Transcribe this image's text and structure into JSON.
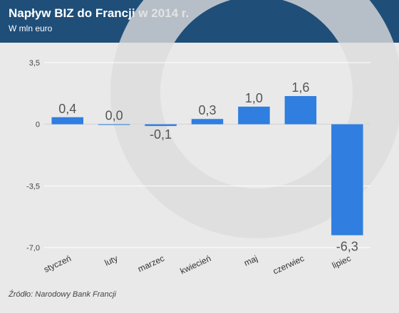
{
  "header": {
    "title": "Napływ BIZ do Francji w 2014 r.",
    "subtitle": "W mln euro"
  },
  "source": "Źródło: Narodowy Bank Francji",
  "colors": {
    "header_bg": "#1f4e79",
    "bar": "#2f7ee0",
    "background": "#e9e9e9",
    "watermark": "#dcdcdc"
  },
  "chart_data": {
    "type": "bar",
    "categories": [
      "styczeń",
      "luty",
      "marzec",
      "kwiecień",
      "maj",
      "czerwiec",
      "lipiec"
    ],
    "values": [
      0.4,
      0.0,
      -0.1,
      0.3,
      1.0,
      1.6,
      -6.3
    ],
    "value_labels": [
      "0,4",
      "0,0",
      "-0,1",
      "0,3",
      "1,0",
      "1,6",
      "-6,3"
    ],
    "yticks": [
      3.5,
      0,
      -3.5,
      -7.0
    ],
    "ytick_labels": [
      "3,5",
      "0",
      "-3,5",
      "-7,0"
    ],
    "ylim": [
      -7.0,
      3.5
    ],
    "grid": true,
    "legend": "none"
  }
}
